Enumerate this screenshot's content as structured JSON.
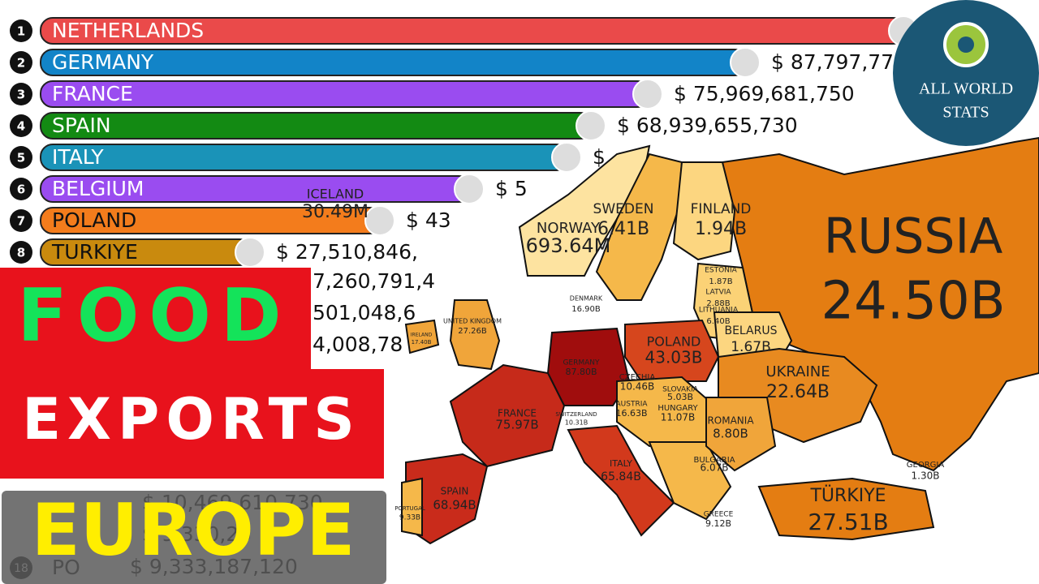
{
  "bars": [
    {
      "rank": "1",
      "name": "NETHERLANDS",
      "value": ""
    },
    {
      "rank": "2",
      "name": "GERMANY",
      "value": "$ 87,797,77"
    },
    {
      "rank": "3",
      "name": "FRANCE",
      "value": "$ 75,969,681,750"
    },
    {
      "rank": "4",
      "name": "SPAIN",
      "value": "$ 68,939,655,730"
    },
    {
      "rank": "5",
      "name": "ITALY",
      "value": "$"
    },
    {
      "rank": "6",
      "name": "BELGIUM",
      "value": "$ 5"
    },
    {
      "rank": "7",
      "name": "POLAND",
      "value": "$ 43"
    },
    {
      "rank": "8",
      "name": "TURKIYE",
      "value": "$ 27,510,846,"
    }
  ],
  "hidden_bars": [
    {
      "rank": "",
      "name": "",
      "value": "7,260,791,4"
    },
    {
      "rank": "",
      "name": "",
      "value": "501,048,6"
    },
    {
      "rank": "",
      "name": "",
      "value": "4,008,78"
    },
    {
      "rank": "",
      "name": "",
      "value": "$ 10,469,610,730"
    },
    {
      "rank": "",
      "name": "",
      "value": "$ 9,330,25"
    },
    {
      "rank": "18",
      "name": "PO",
      "value": "$ 9,333,187,120"
    }
  ],
  "map": {
    "countries": [
      {
        "name": "RUSSIA",
        "value": "24.50B"
      },
      {
        "name": "ICELAND",
        "value": "30.49M"
      },
      {
        "name": "NORWAY",
        "value": "693.64M"
      },
      {
        "name": "SWEDEN",
        "value": "6.41B"
      },
      {
        "name": "FINLAND",
        "value": "1.94B"
      },
      {
        "name": "ESTONIA",
        "value": "1.87B"
      },
      {
        "name": "LATVIA",
        "value": "2.88B"
      },
      {
        "name": "LITHUANIA",
        "value": "6.40B"
      },
      {
        "name": "BELARUS",
        "value": "1.67B"
      },
      {
        "name": "POLAND",
        "value": "43.03B"
      },
      {
        "name": "UKRAINE",
        "value": "22.64B"
      },
      {
        "name": "DENMARK",
        "value": "16.90B"
      },
      {
        "name": "UNITED KINGDOM",
        "value": "27.26B"
      },
      {
        "name": "IRELAND",
        "value": "17.40B"
      },
      {
        "name": "GERMANY",
        "value": "87.80B"
      },
      {
        "name": "FRANCE",
        "value": "75.97B"
      },
      {
        "name": "SWITZERLAND",
        "value": "10.31B"
      },
      {
        "name": "CZECHIA",
        "value": "10.46B"
      },
      {
        "name": "SLOVAKIA",
        "value": "5.03B"
      },
      {
        "name": "AUSTRIA",
        "value": "16.63B"
      },
      {
        "name": "HUNGARY",
        "value": "11.07B"
      },
      {
        "name": "ROMANIA",
        "value": "8.80B"
      },
      {
        "name": "BULGARIA",
        "value": "6.07B"
      },
      {
        "name": "ITALY",
        "value": "65.84B"
      },
      {
        "name": "SPAIN",
        "value": "68.94B"
      },
      {
        "name": "PORTUGAL",
        "value": "9.33B"
      },
      {
        "name": "GREECE",
        "value": "9.12B"
      },
      {
        "name": "TÜRKIYE",
        "value": "27.51B"
      },
      {
        "name": "GEORGIA",
        "value": "1.30B"
      }
    ]
  },
  "logo": {
    "line1": "ALL WORLD",
    "line2": "STATS"
  },
  "overlay": {
    "line1": "FOOD",
    "line2": "EXPORTS",
    "line3": "EUROPE"
  }
}
